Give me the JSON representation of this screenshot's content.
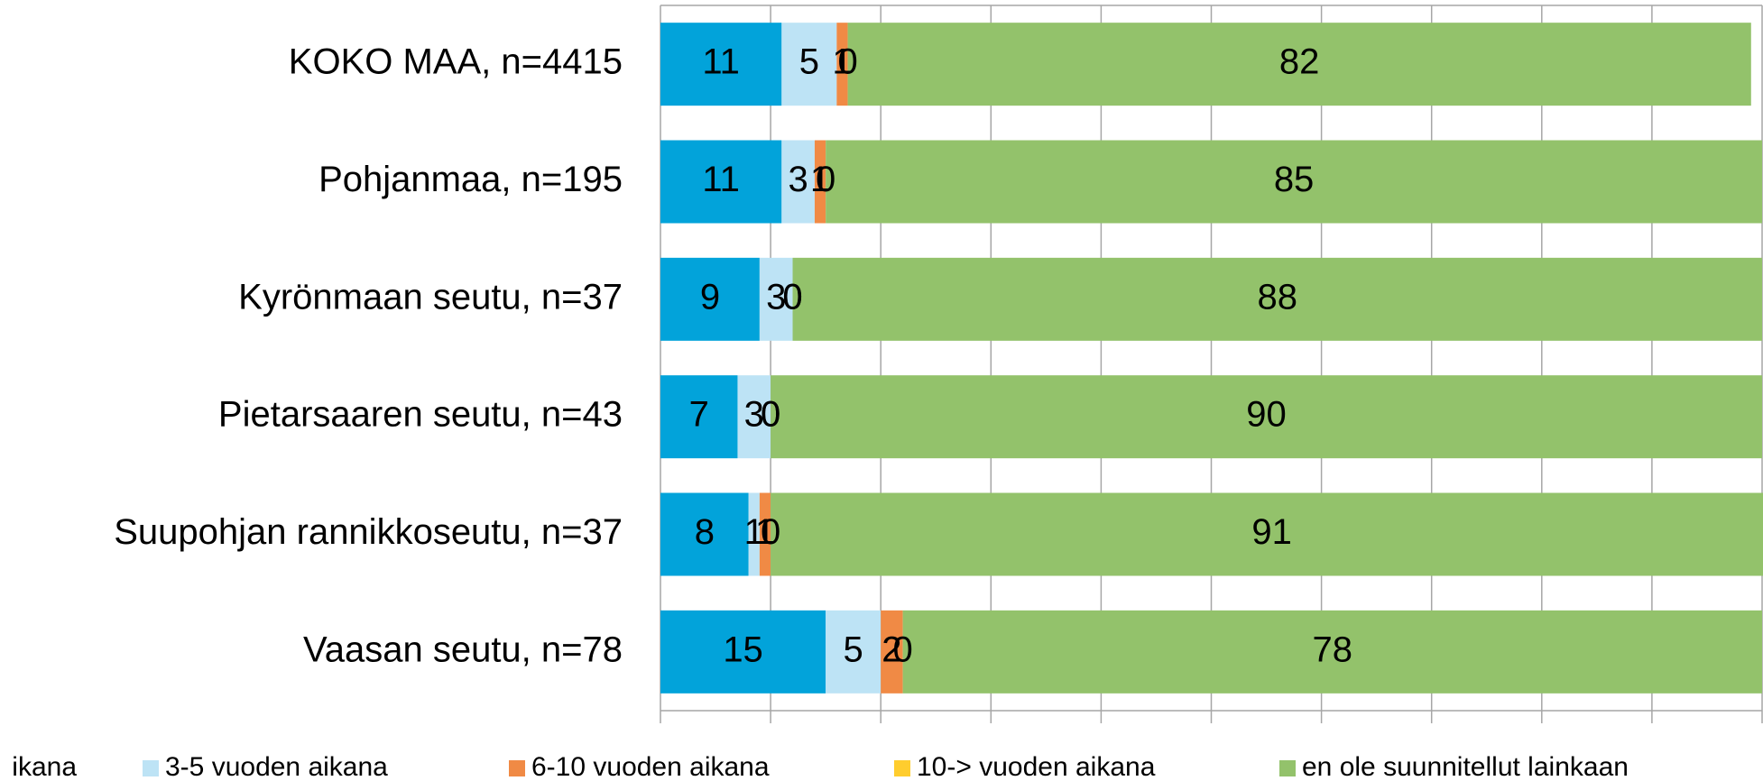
{
  "chart_data": {
    "type": "stacked_barh",
    "categories": [
      "KOKO MAA, n=4415",
      "Pohjanmaa, n=195",
      "Kyrönmaan seutu, n=37",
      "Pietarsaaren seutu, n=43",
      "Suupohjan rannikkoseutu, n=37",
      "Vaasan seutu, n=78"
    ],
    "series": [
      {
        "name": "ikana",
        "color": "#02a3da",
        "values": [
          11,
          11,
          9,
          7,
          8,
          15
        ]
      },
      {
        "name": "3-5 vuoden aikana",
        "color": "#bde3f5",
        "values": [
          5,
          3,
          3,
          3,
          1,
          5
        ]
      },
      {
        "name": "6-10 vuoden aikana",
        "color": "#f08a45",
        "values": [
          1,
          1,
          0,
          0,
          1,
          2
        ]
      },
      {
        "name": "10-> vuoden aikana",
        "color": "#ffcd2e",
        "values": [
          0,
          0,
          0,
          0,
          0,
          0
        ]
      },
      {
        "name": "en ole suunnitellut lainkaan",
        "color": "#93c26b",
        "values": [
          82,
          85,
          88,
          90,
          91,
          78
        ]
      }
    ],
    "xlim": [
      0,
      100
    ],
    "xticks": [
      0,
      10,
      20,
      30,
      40,
      50,
      60,
      70,
      80,
      90,
      100
    ],
    "grid": true
  }
}
